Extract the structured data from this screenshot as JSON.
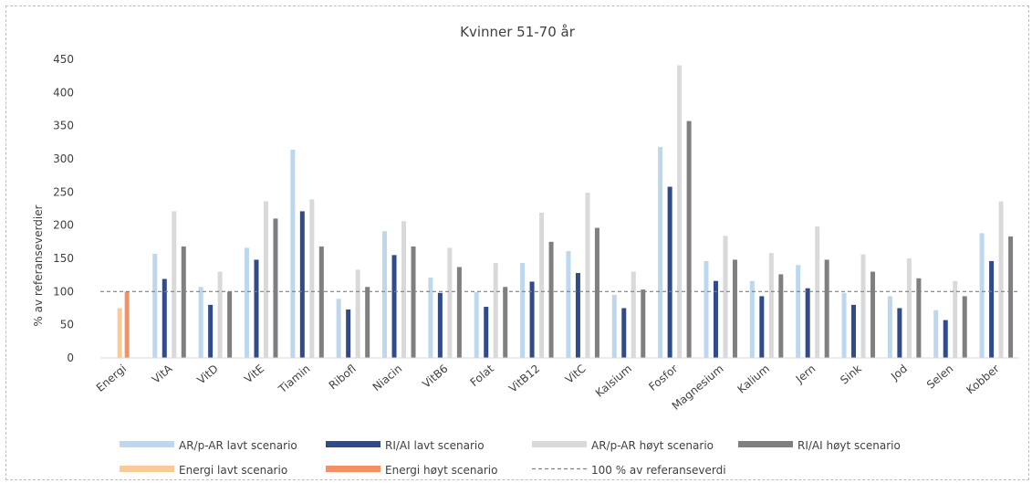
{
  "chart_data": {
    "type": "bar",
    "title": "Kvinner 51-70 år",
    "ylabel": "% av referanseverdier",
    "xlabel": "",
    "ylim": [
      0,
      450
    ],
    "yticks": [
      0,
      50,
      100,
      150,
      200,
      250,
      300,
      350,
      400,
      450
    ],
    "grid": false,
    "legend_position": "bottom",
    "reference_line": {
      "value": 100,
      "label": "100 % av referanseverdi",
      "color": "#808080",
      "style": "dashed"
    },
    "categories": [
      "Energi",
      "VitA",
      "VitD",
      "VitE",
      "Tiamin",
      "Ribofl",
      "Niacin",
      "VitB6",
      "Folat",
      "VitB12",
      "VitC",
      "Kalsium",
      "Fosfor",
      "Magnesium",
      "Kalium",
      "Jern",
      "Sink",
      "Jod",
      "Selen",
      "Kobber"
    ],
    "series": [
      {
        "name": "AR/p-AR lavt scenario",
        "color": "#bdd7ee",
        "values": [
          null,
          157,
          107,
          166,
          314,
          89,
          191,
          121,
          99,
          143,
          161,
          95,
          318,
          146,
          116,
          140,
          98,
          93,
          72,
          188
        ]
      },
      {
        "name": "RI/AI lavt scenario",
        "color": "#2f4b8a",
        "values": [
          null,
          119,
          80,
          148,
          221,
          73,
          155,
          98,
          77,
          115,
          128,
          75,
          258,
          116,
          93,
          105,
          80,
          75,
          57,
          146
        ]
      },
      {
        "name": "AR/p-AR høyt scenario",
        "color": "#d9d9d9",
        "values": [
          null,
          221,
          130,
          236,
          239,
          133,
          206,
          166,
          143,
          219,
          249,
          130,
          441,
          184,
          158,
          198,
          156,
          150,
          116,
          236
        ]
      },
      {
        "name": "RI/AI høyt scenario",
        "color": "#7f7f7f",
        "values": [
          null,
          168,
          100,
          210,
          168,
          107,
          168,
          137,
          107,
          175,
          196,
          103,
          357,
          148,
          126,
          148,
          130,
          120,
          93,
          183
        ]
      },
      {
        "name": "Energi lavt scenario",
        "color": "#f8cb96",
        "values": [
          75,
          null,
          null,
          null,
          null,
          null,
          null,
          null,
          null,
          null,
          null,
          null,
          null,
          null,
          null,
          null,
          null,
          null,
          null,
          null
        ]
      },
      {
        "name": "Energi høyt scenario",
        "color": "#f49164",
        "values": [
          100,
          null,
          null,
          null,
          null,
          null,
          null,
          null,
          null,
          null,
          null,
          null,
          null,
          null,
          null,
          null,
          null,
          null,
          null,
          null
        ]
      }
    ]
  }
}
